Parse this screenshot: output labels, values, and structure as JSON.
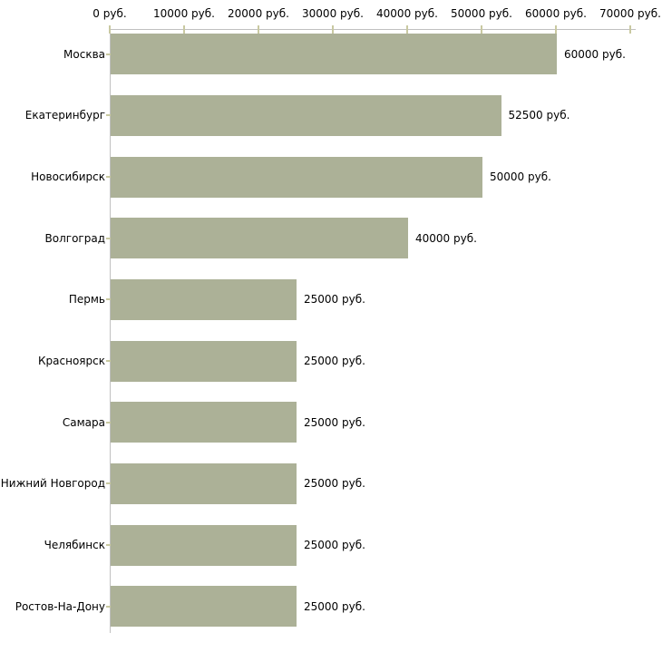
{
  "chart_data": {
    "type": "bar",
    "orientation": "horizontal",
    "title": "",
    "xlabel": "",
    "ylabel": "",
    "categories": [
      "Москва",
      "Екатеринбург",
      "Новосибирск",
      "Волгоград",
      "Пермь",
      "Красноярск",
      "Самара",
      "Нижний Новгород",
      "Челябинск",
      "Ростов-На-Дону"
    ],
    "values": [
      60000,
      52500,
      50000,
      40000,
      25000,
      25000,
      25000,
      25000,
      25000,
      25000
    ],
    "value_labels": [
      "60000 руб.",
      "52500 руб.",
      "50000 руб.",
      "40000 руб.",
      "25000 руб.",
      "25000 руб.",
      "25000 руб.",
      "25000 руб.",
      "25000 руб.",
      "25000 руб."
    ],
    "x_axis": {
      "position": "top",
      "min": 0,
      "max": 70000,
      "tick_values": [
        0,
        10000,
        20000,
        30000,
        40000,
        50000,
        60000,
        70000
      ],
      "tick_labels": [
        "0 руб.",
        "10000 руб.",
        "20000 руб.",
        "30000 руб.",
        "40000 руб.",
        "50000 руб.",
        "60000 руб.",
        "70000 руб."
      ]
    },
    "legend": "none",
    "grid": "off",
    "colors": {
      "bar_fill": "#acb197",
      "axis_line": "#c0c0c0",
      "tick_mark": "#c9c9a1",
      "text": "#000000",
      "background": "#ffffff"
    }
  }
}
